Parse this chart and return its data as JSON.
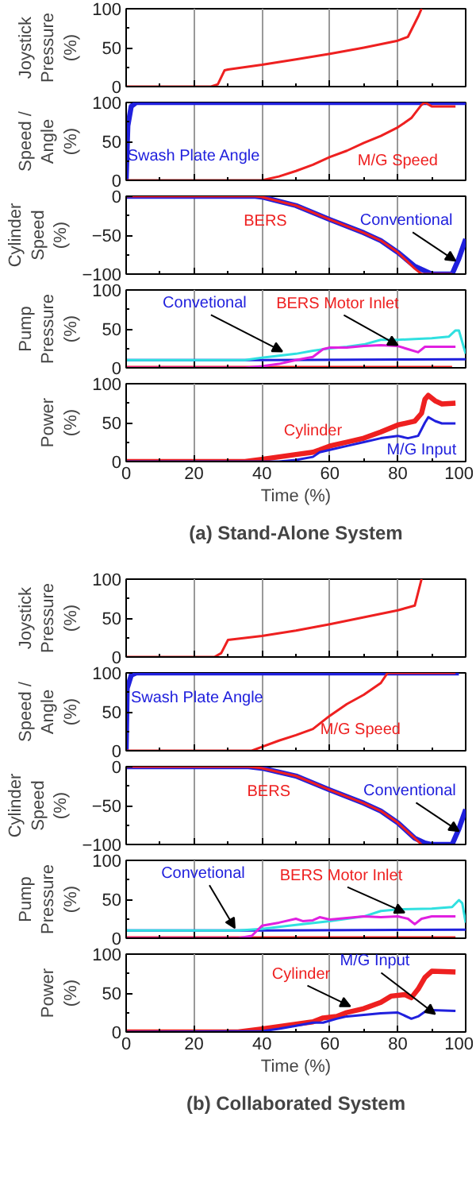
{
  "chart_data": [
    {
      "type": "line",
      "ylabel": "Joystick\nPressure\n(%)",
      "xlim": [
        0,
        100
      ],
      "xticks": [
        0,
        20,
        40,
        60,
        80,
        100
      ],
      "ylim": [
        0,
        100
      ],
      "yticks": [
        0,
        50,
        100
      ],
      "grid": "x",
      "tick_labels": "y",
      "series": [
        {
          "color": "#ee2020",
          "x": [
            0,
            25,
            27,
            29,
            30,
            40,
            50,
            60,
            70,
            80,
            83,
            86,
            87
          ],
          "values": [
            0,
            0,
            3,
            21,
            22,
            28,
            35,
            42,
            50,
            59,
            64,
            90,
            100
          ]
        }
      ]
    },
    {
      "type": "line",
      "ylabel": "Speed /\nAngle\n(%)",
      "xlim": [
        0,
        100
      ],
      "xticks": [
        0,
        20,
        40,
        60,
        80,
        100
      ],
      "ylim": [
        0,
        100
      ],
      "yticks": [
        0,
        50,
        100
      ],
      "grid": "x",
      "tick_labels": "y",
      "series": [
        {
          "color": "#2020dd",
          "x": [
            0,
            0.5,
            1.5,
            3,
            100
          ],
          "values": [
            0,
            70,
            95,
            100,
            100
          ]
        },
        {
          "color": "#ee2020",
          "x": [
            0,
            40,
            45,
            50,
            55,
            60,
            65,
            70,
            75,
            80,
            84,
            87,
            88,
            90,
            97
          ],
          "values": [
            0,
            0,
            5,
            12,
            20,
            30,
            38,
            48,
            57,
            68,
            80,
            97,
            100,
            95,
            95
          ]
        }
      ],
      "annotations": [
        "Swash Plate Angle",
        "M/G Speed"
      ]
    },
    {
      "type": "line",
      "ylabel": "Cylinder\nSpeed\n(%)",
      "xlim": [
        0,
        100
      ],
      "xticks": [
        0,
        20,
        40,
        60,
        80,
        100
      ],
      "ylim": [
        -100,
        0
      ],
      "yticks": [
        -100,
        -50,
        0
      ],
      "grid": "x",
      "tick_labels": "y",
      "series": [
        {
          "color": "#2020dd",
          "x": [
            0,
            38,
            40,
            50,
            60,
            70,
            75,
            80,
            85,
            90,
            96,
            98,
            100
          ],
          "values": [
            0,
            0,
            -1,
            -12,
            -30,
            -47,
            -57,
            -72,
            -90,
            -100,
            -100,
            -80,
            -55
          ]
        },
        {
          "color": "#ee2020",
          "x": [
            0,
            38,
            40,
            50,
            60,
            70,
            75,
            80,
            85,
            87,
            96
          ],
          "values": [
            0,
            0,
            -1,
            -12,
            -30,
            -47,
            -57,
            -72,
            -93,
            -100,
            -100
          ]
        }
      ],
      "annotations": [
        "BERS",
        {
          "text": "Conventional",
          "x": 97,
          "y": -83
        }
      ]
    },
    {
      "type": "line",
      "ylabel": "Pump\nPressure\n(%)",
      "xlim": [
        0,
        100
      ],
      "xticks": [
        0,
        20,
        40,
        60,
        80,
        100
      ],
      "ylim": [
        0,
        100
      ],
      "yticks": [
        0,
        50,
        100
      ],
      "grid": "x",
      "tick_labels": "y",
      "series": [
        {
          "color": "#2020dd",
          "x": [
            0,
            40,
            100
          ],
          "values": [
            10,
            10,
            11
          ]
        },
        {
          "color": "#ee2020",
          "x": [
            0,
            96
          ],
          "values": [
            1,
            1
          ]
        },
        {
          "color": "#30e0e0",
          "x": [
            0,
            35,
            40,
            50,
            55,
            60,
            65,
            70,
            75,
            80,
            85,
            90,
            95,
            97,
            98,
            100
          ],
          "values": [
            10,
            10,
            13,
            18,
            22,
            25,
            27,
            30,
            36,
            36,
            37,
            38,
            40,
            48,
            48,
            18
          ]
        },
        {
          "color": "#e020e0",
          "x": [
            0,
            35,
            40,
            45,
            50,
            55,
            58,
            60,
            65,
            70,
            75,
            80,
            83,
            86,
            88,
            97
          ],
          "values": [
            0,
            0,
            2,
            5,
            10,
            14,
            24,
            26,
            26,
            28,
            29,
            28,
            24,
            20,
            27,
            27
          ]
        }
      ],
      "annotations": [
        {
          "text": "Convetional",
          "x": 46,
          "y": 21
        },
        {
          "text": "BERS Motor Inlet",
          "x": 80,
          "y": 29
        }
      ]
    },
    {
      "type": "line",
      "ylabel": "Power\n(%)",
      "xlabel": "Time (%)",
      "title": "(a) Stand-Alone System",
      "xlim": [
        0,
        100
      ],
      "xticks": [
        0,
        20,
        40,
        60,
        80,
        100
      ],
      "ylim": [
        0,
        100
      ],
      "yticks": [
        0,
        50,
        100
      ],
      "grid": "x",
      "series": [
        {
          "color": "#ee2020",
          "x": [
            0,
            35,
            40,
            45,
            50,
            55,
            57,
            60,
            65,
            70,
            75,
            80,
            85,
            87,
            88,
            89,
            91,
            93,
            97
          ],
          "values": [
            0,
            0,
            3,
            6,
            9,
            12,
            15,
            20,
            25,
            30,
            38,
            47,
            52,
            62,
            80,
            85,
            78,
            74,
            75
          ]
        },
        {
          "color": "#2020dd",
          "x": [
            0,
            45,
            50,
            55,
            57,
            60,
            65,
            70,
            75,
            80,
            83,
            86,
            88,
            89,
            91,
            93,
            97
          ],
          "values": [
            0,
            0,
            2,
            6,
            12,
            15,
            20,
            25,
            30,
            33,
            30,
            33,
            50,
            57,
            52,
            49,
            49
          ]
        }
      ],
      "annotations": [
        "Cylinder",
        "M/G Input"
      ]
    },
    {
      "type": "line",
      "ylabel": "Joystick\nPressure\n(%)",
      "xlim": [
        0,
        100
      ],
      "xticks": [
        0,
        20,
        40,
        60,
        80,
        100
      ],
      "ylim": [
        0,
        100
      ],
      "yticks": [
        0,
        50,
        100
      ],
      "grid": "x",
      "tick_labels": "y",
      "series": [
        {
          "color": "#ee2020",
          "x": [
            0,
            26,
            28,
            30,
            32,
            40,
            50,
            60,
            70,
            80,
            85,
            87
          ],
          "values": [
            0,
            0,
            5,
            22,
            23,
            27,
            34,
            42,
            51,
            60,
            66,
            100
          ]
        }
      ]
    },
    {
      "type": "line",
      "ylabel": "Speed /\nAngle\n(%)",
      "xlim": [
        0,
        100
      ],
      "xticks": [
        0,
        20,
        40,
        60,
        80,
        100
      ],
      "ylim": [
        0,
        100
      ],
      "yticks": [
        0,
        50,
        100
      ],
      "grid": "x",
      "tick_labels": "y",
      "series": [
        {
          "color": "#2020dd",
          "x": [
            0,
            0.3,
            1.5,
            3,
            98
          ],
          "values": [
            0,
            80,
            97,
            100,
            100
          ]
        },
        {
          "color": "#ee2020",
          "x": [
            0,
            37,
            40,
            45,
            50,
            55,
            60,
            65,
            70,
            75,
            77,
            97
          ],
          "values": [
            0,
            0,
            5,
            13,
            20,
            28,
            45,
            60,
            72,
            87,
            100,
            100
          ]
        }
      ],
      "annotations": [
        "Swash Plate Angle",
        "M/G Speed"
      ]
    },
    {
      "type": "line",
      "ylabel": "Cylinder\nSpeed\n(%)",
      "xlim": [
        0,
        100
      ],
      "xticks": [
        0,
        20,
        40,
        60,
        80,
        100
      ],
      "ylim": [
        -100,
        0
      ],
      "yticks": [
        -100,
        -50,
        0
      ],
      "grid": "x",
      "tick_labels": "y",
      "series": [
        {
          "color": "#2020dd",
          "x": [
            0,
            36,
            40,
            50,
            60,
            70,
            75,
            80,
            85,
            88,
            90,
            96,
            98,
            100
          ],
          "values": [
            0,
            0,
            -2,
            -12,
            -30,
            -47,
            -57,
            -72,
            -92,
            -98,
            -100,
            -100,
            -80,
            -55
          ]
        },
        {
          "color": "#ee2020",
          "x": [
            0,
            36,
            40,
            50,
            60,
            70,
            75,
            80,
            85,
            87
          ],
          "values": [
            0,
            0,
            -2,
            -12,
            -30,
            -47,
            -57,
            -72,
            -92,
            -100
          ]
        }
      ],
      "annotations": [
        "BERS",
        {
          "text": "Conventional",
          "x": 98,
          "y": -83
        }
      ]
    },
    {
      "type": "line",
      "ylabel": "Pump\nPressure\n(%)",
      "xlim": [
        0,
        100
      ],
      "xticks": [
        0,
        20,
        40,
        60,
        80,
        100
      ],
      "ylim": [
        0,
        100
      ],
      "yticks": [
        0,
        50,
        100
      ],
      "grid": "x",
      "tick_labels": "y",
      "series": [
        {
          "color": "#2020dd",
          "x": [
            0,
            40,
            100
          ],
          "values": [
            10,
            10,
            11
          ]
        },
        {
          "color": "#ee2020",
          "x": [
            0,
            97
          ],
          "values": [
            1,
            1
          ]
        },
        {
          "color": "#30e0e0",
          "x": [
            0,
            33,
            40,
            50,
            60,
            70,
            75,
            80,
            90,
            96,
            98,
            99,
            100
          ],
          "values": [
            10,
            10,
            12,
            17,
            22,
            28,
            35,
            37,
            38,
            40,
            49,
            45,
            20
          ]
        },
        {
          "color": "#e020e0",
          "x": [
            0,
            33,
            37,
            40,
            45,
            50,
            52,
            55,
            57,
            60,
            65,
            70,
            75,
            80,
            83,
            85,
            87,
            90,
            97
          ],
          "values": [
            0,
            0,
            3,
            16,
            20,
            25,
            22,
            23,
            27,
            24,
            26,
            28,
            27,
            28,
            25,
            18,
            25,
            28,
            28
          ]
        }
      ],
      "annotations": [
        {
          "text": "Convetional",
          "x": 32,
          "y": 13
        },
        {
          "text": "BERS Motor Inlet",
          "x": 82,
          "y": 33
        }
      ]
    },
    {
      "type": "line",
      "ylabel": "Power\n(%)",
      "xlabel": "Time (%)",
      "title": "(b) Collaborated System",
      "xlim": [
        0,
        100
      ],
      "xticks": [
        0,
        20,
        40,
        60,
        80,
        100
      ],
      "ylim": [
        0,
        100
      ],
      "yticks": [
        0,
        50,
        100
      ],
      "grid": "x",
      "series": [
        {
          "color": "#ee2020",
          "x": [
            0,
            33,
            40,
            45,
            50,
            55,
            58,
            62,
            65,
            70,
            75,
            78,
            82,
            84,
            86,
            88,
            90,
            97
          ],
          "values": [
            0,
            0,
            4,
            7,
            10,
            13,
            18,
            20,
            25,
            30,
            38,
            46,
            48,
            44,
            55,
            70,
            78,
            77
          ]
        },
        {
          "color": "#2020dd",
          "x": [
            0,
            40,
            45,
            50,
            55,
            58,
            62,
            65,
            70,
            75,
            80,
            84,
            86,
            88,
            90,
            97
          ],
          "values": [
            0,
            1,
            4,
            8,
            12,
            12,
            17,
            20,
            22,
            24,
            25,
            17,
            20,
            26,
            28,
            27
          ]
        }
      ],
      "annotations": [
        {
          "text": "Cylinder",
          "x": 66,
          "y": 33
        },
        {
          "text": "M/G Input",
          "x": 91,
          "y": 23
        }
      ]
    }
  ]
}
